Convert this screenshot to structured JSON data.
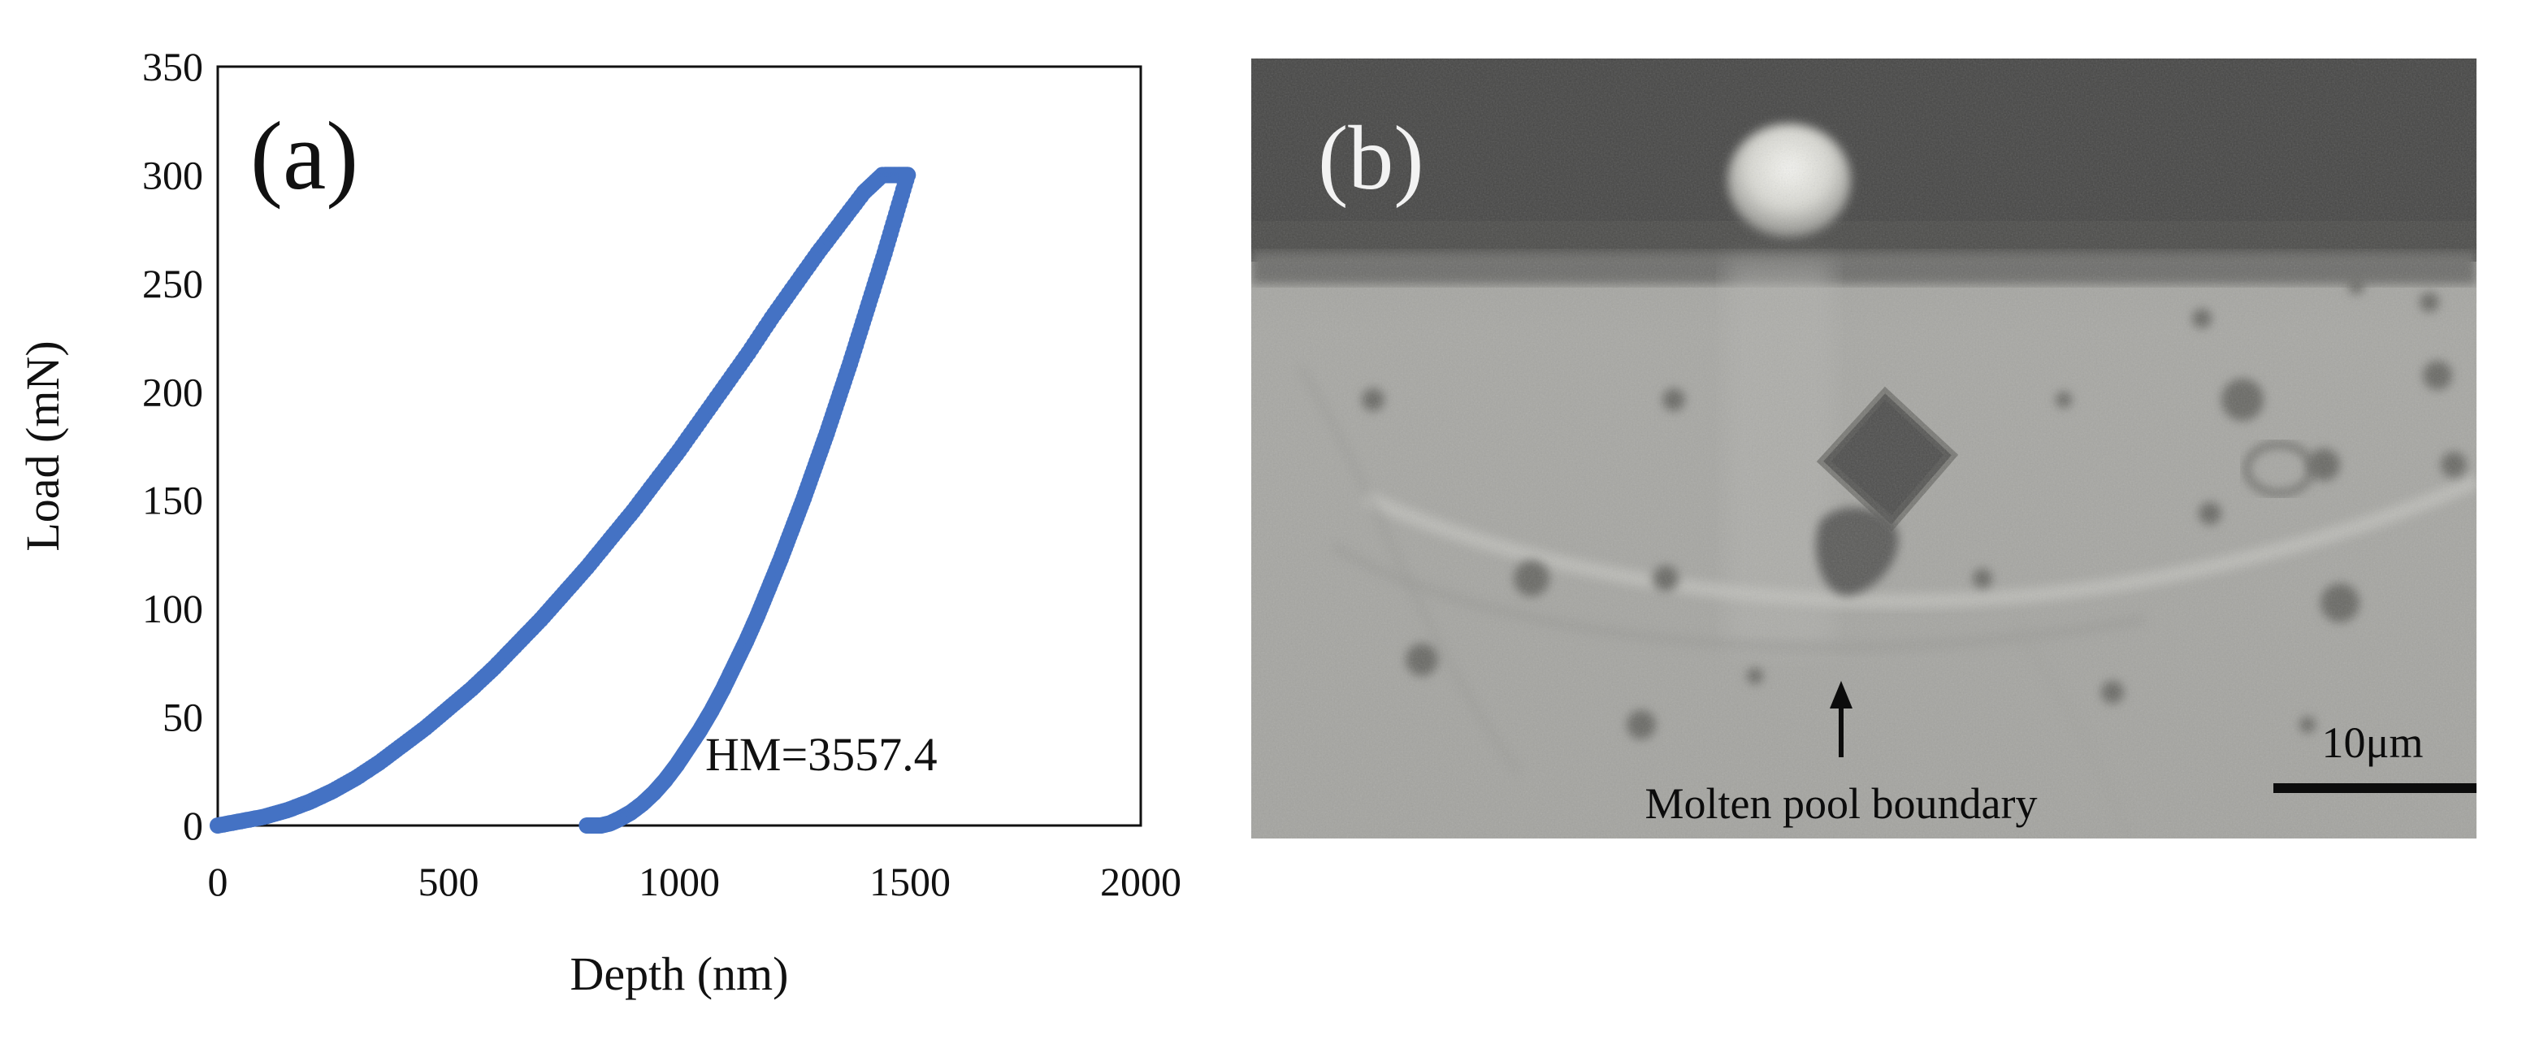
{
  "chart_data": {
    "type": "scatter",
    "panel_label": "(a)",
    "xlabel": "Depth (nm)",
    "ylabel": "Load (mN)",
    "xlim": [
      0,
      2000
    ],
    "ylim": [
      0,
      350
    ],
    "x_ticks": [
      0,
      500,
      1000,
      1500,
      2000
    ],
    "y_ticks": [
      0,
      50,
      100,
      150,
      200,
      250,
      300,
      350
    ],
    "grid": false,
    "marker_color": "#4472C4",
    "annotation": "HM=3557.4",
    "series": [
      {
        "segment": "loading",
        "x": [
          0,
          50,
          100,
          150,
          200,
          250,
          300,
          350,
          400,
          450,
          500,
          550,
          600,
          650,
          700,
          750,
          800,
          850,
          900,
          950,
          1000,
          1050,
          1100,
          1150,
          1200,
          1250,
          1300,
          1350,
          1400,
          1440
        ],
        "y": [
          0,
          2,
          4,
          7,
          11,
          16,
          22,
          29,
          37,
          45,
          54,
          63,
          73,
          84,
          95,
          107,
          119,
          132,
          145,
          159,
          173,
          188,
          203,
          218,
          234,
          249,
          264,
          278,
          292,
          300
        ]
      },
      {
        "segment": "hold",
        "x": [
          1445,
          1455,
          1465,
          1475,
          1485,
          1495
        ],
        "y": [
          300,
          300,
          300,
          300,
          300,
          300
        ]
      },
      {
        "segment": "unloading",
        "x": [
          1495,
          1470,
          1445,
          1420,
          1395,
          1370,
          1345,
          1320,
          1295,
          1270,
          1245,
          1220,
          1195,
          1170,
          1145,
          1120,
          1095,
          1070,
          1045,
          1020,
          995,
          970,
          945,
          920,
          895,
          870,
          850,
          830,
          815,
          800
        ],
        "y": [
          300,
          282,
          264,
          247,
          230,
          213,
          197,
          181,
          166,
          151,
          137,
          123,
          110,
          97,
          85,
          74,
          63,
          53,
          44,
          36,
          28,
          21,
          15,
          10,
          6,
          3,
          1,
          0,
          0,
          0
        ]
      }
    ]
  },
  "micrograph": {
    "panel_label": "(b)",
    "arrow_label": "Molten pool boundary",
    "scale_bar_label": "10μm"
  }
}
